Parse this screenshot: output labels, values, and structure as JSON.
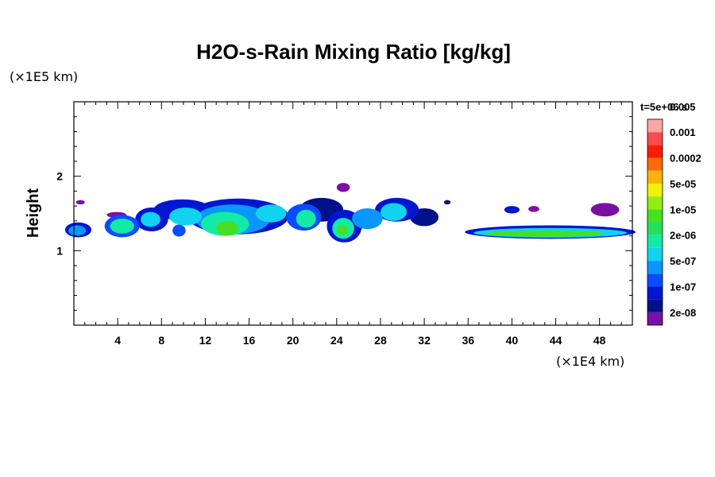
{
  "chart_data": {
    "type": "heatmap",
    "title": "H2O-s-Rain Mixing Ratio [kg/kg]",
    "ylabel": "Height",
    "x_unit": "(×1E4 km)",
    "y_unit": "(×1E5 km)",
    "time_label": "t=5e+06 s",
    "xlim": [
      0,
      51
    ],
    "ylim": [
      0,
      3
    ],
    "x_ticks": [
      4,
      8,
      12,
      16,
      20,
      24,
      28,
      32,
      36,
      40,
      44,
      48
    ],
    "y_ticks": [
      1,
      2
    ],
    "colorbar": {
      "colors": [
        "#7b0fa3",
        "#000f8a",
        "#0016d0",
        "#0a4dff",
        "#0a96ff",
        "#11d3f0",
        "#14eaa8",
        "#25e05f",
        "#46e020",
        "#90ee10",
        "#f1f10a",
        "#f8b40a",
        "#ff6a0a",
        "#ff1a0a",
        "#f84b4b",
        "#ffa4a4"
      ],
      "labels": [
        "2e-08",
        "1e-07",
        "5e-07",
        "2e-06",
        "1e-05",
        "5e-05",
        "0.0002",
        "0.001",
        "0.005"
      ]
    },
    "regions": [
      {
        "x": 0.6,
        "y": 1.65,
        "dx": 0.4,
        "dy": 0.03,
        "level": 0
      },
      {
        "x": 0.4,
        "y": 1.28,
        "dx": 1.2,
        "dy": 0.1,
        "level": 2
      },
      {
        "x": 0.3,
        "y": 1.27,
        "dx": 0.8,
        "dy": 0.07,
        "level": 4
      },
      {
        "x": 3.9,
        "y": 1.48,
        "dx": 0.9,
        "dy": 0.04,
        "level": 0
      },
      {
        "x": 4.4,
        "y": 1.33,
        "dx": 1.6,
        "dy": 0.15,
        "level": 3
      },
      {
        "x": 4.4,
        "y": 1.33,
        "dx": 1.1,
        "dy": 0.1,
        "level": 6
      },
      {
        "x": 7.1,
        "y": 1.42,
        "dx": 1.5,
        "dy": 0.16,
        "level": 2
      },
      {
        "x": 7.0,
        "y": 1.42,
        "dx": 0.9,
        "dy": 0.1,
        "level": 5
      },
      {
        "x": 9.9,
        "y": 1.55,
        "dx": 2.6,
        "dy": 0.14,
        "level": 2
      },
      {
        "x": 10.2,
        "y": 1.46,
        "dx": 1.5,
        "dy": 0.12,
        "level": 5
      },
      {
        "x": 9.6,
        "y": 1.27,
        "dx": 0.6,
        "dy": 0.08,
        "level": 3
      },
      {
        "x": 15.0,
        "y": 1.46,
        "dx": 4.6,
        "dy": 0.24,
        "level": 2
      },
      {
        "x": 14.5,
        "y": 1.42,
        "dx": 3.4,
        "dy": 0.2,
        "level": 4
      },
      {
        "x": 13.8,
        "y": 1.36,
        "dx": 2.2,
        "dy": 0.16,
        "level": 6
      },
      {
        "x": 14.0,
        "y": 1.3,
        "dx": 1.0,
        "dy": 0.1,
        "level": 8
      },
      {
        "x": 18.0,
        "y": 1.5,
        "dx": 1.4,
        "dy": 0.12,
        "level": 5
      },
      {
        "x": 22.6,
        "y": 1.55,
        "dx": 2.0,
        "dy": 0.16,
        "level": 1
      },
      {
        "x": 21.0,
        "y": 1.45,
        "dx": 1.6,
        "dy": 0.18,
        "level": 3
      },
      {
        "x": 21.2,
        "y": 1.43,
        "dx": 0.9,
        "dy": 0.12,
        "level": 6
      },
      {
        "x": 24.6,
        "y": 1.85,
        "dx": 0.6,
        "dy": 0.06,
        "level": 0
      },
      {
        "x": 24.7,
        "y": 1.33,
        "dx": 1.6,
        "dy": 0.22,
        "level": 2
      },
      {
        "x": 24.6,
        "y": 1.3,
        "dx": 1.0,
        "dy": 0.14,
        "level": 6
      },
      {
        "x": 24.5,
        "y": 1.28,
        "dx": 0.5,
        "dy": 0.07,
        "level": 8
      },
      {
        "x": 26.8,
        "y": 1.43,
        "dx": 1.4,
        "dy": 0.14,
        "level": 4
      },
      {
        "x": 29.5,
        "y": 1.55,
        "dx": 2.0,
        "dy": 0.16,
        "level": 2
      },
      {
        "x": 29.2,
        "y": 1.52,
        "dx": 1.2,
        "dy": 0.12,
        "level": 5
      },
      {
        "x": 32.0,
        "y": 1.45,
        "dx": 1.3,
        "dy": 0.12,
        "level": 1
      },
      {
        "x": 34.1,
        "y": 1.65,
        "dx": 0.3,
        "dy": 0.03,
        "level": 1
      },
      {
        "x": 40.0,
        "y": 1.55,
        "dx": 0.7,
        "dy": 0.05,
        "level": 2
      },
      {
        "x": 42.0,
        "y": 1.56,
        "dx": 0.5,
        "dy": 0.04,
        "level": 0
      },
      {
        "x": 48.5,
        "y": 1.55,
        "dx": 1.3,
        "dy": 0.09,
        "level": 0
      },
      {
        "x": 43.5,
        "y": 1.25,
        "dx": 7.8,
        "dy": 0.09,
        "level": 2
      },
      {
        "x": 43.5,
        "y": 1.24,
        "dx": 7.0,
        "dy": 0.065,
        "level": 5
      },
      {
        "x": 43.0,
        "y": 1.23,
        "dx": 5.5,
        "dy": 0.04,
        "level": 8
      }
    ]
  }
}
